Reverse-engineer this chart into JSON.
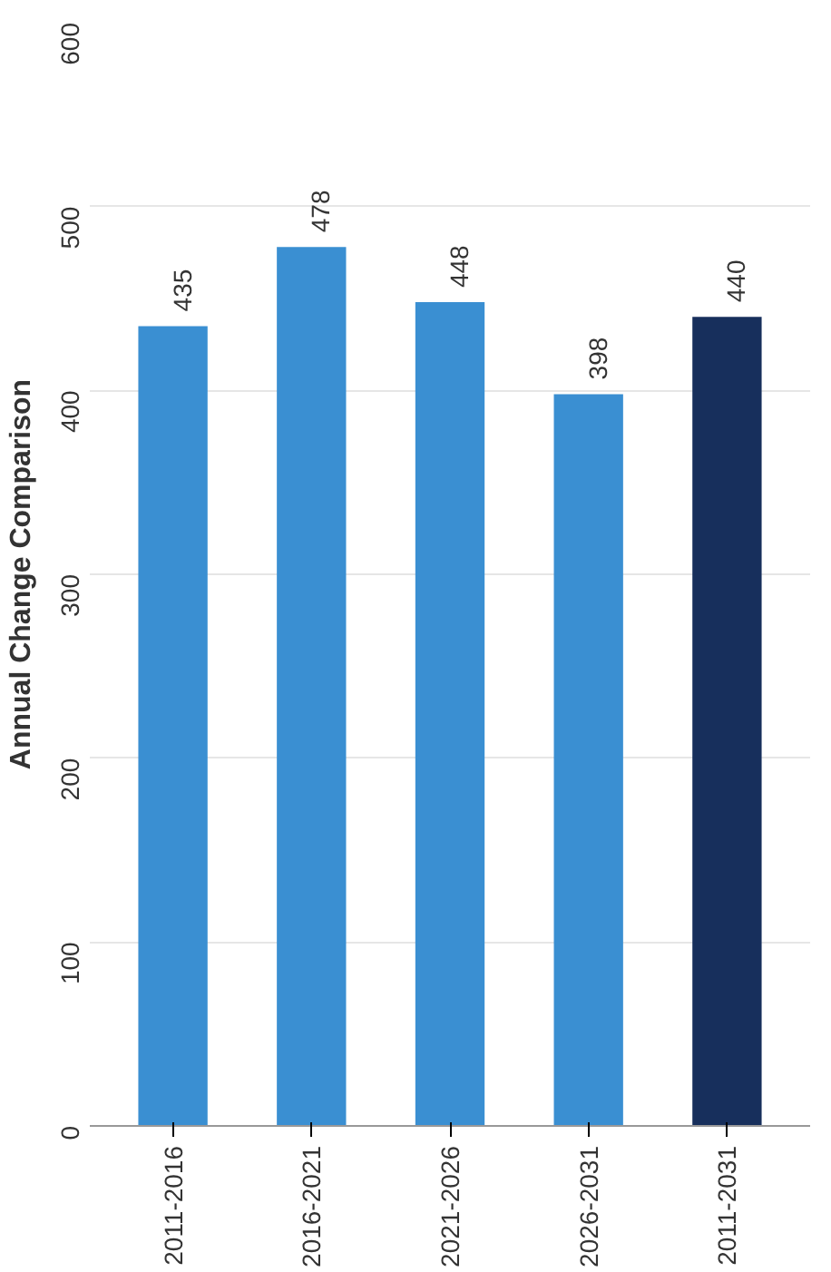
{
  "chart_data": {
    "type": "bar",
    "ylabel": "Annual Change Comparison",
    "categories": [
      "2011-2016",
      "2016-2021",
      "2021-2026",
      "2026-2031",
      "2011-2031"
    ],
    "values": [
      435,
      478,
      448,
      398,
      440
    ],
    "colors": [
      "#3a8fd2",
      "#3a8fd2",
      "#3a8fd2",
      "#3a8fd2",
      "#172f5c"
    ],
    "ylim": [
      0,
      600
    ],
    "yticks": [
      0,
      100,
      200,
      300,
      400,
      500,
      600
    ],
    "grid": "y",
    "data_labels": true
  }
}
